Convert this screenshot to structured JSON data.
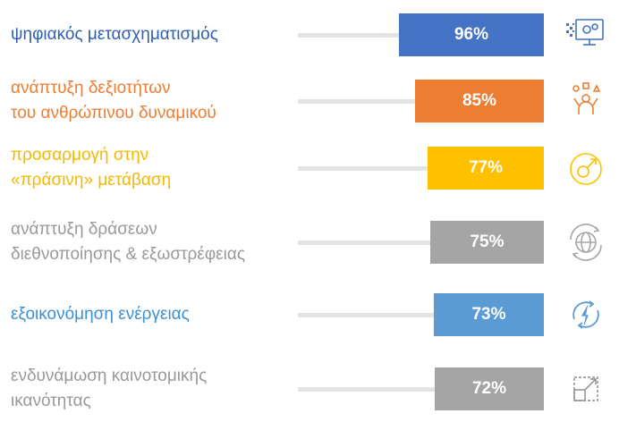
{
  "chart_data": {
    "type": "bar",
    "orientation": "horizontal",
    "categories": [
      "ψηφιακός μετασχηματισμός",
      "ανάπτυξη δεξιοτήτων\nτου ανθρώπινου δυναμικού",
      "προσαρμογή στην\n«πράσινη» μετάβαση",
      "ανάπτυξη δράσεων\nδιεθνοποίησης & εξωστρέφειας",
      "εξοικονόμηση ενέργειας",
      "ενδυνάμωση καινοτομικής\nικανότητας"
    ],
    "values": [
      96,
      85,
      77,
      75,
      73,
      72
    ],
    "value_labels": [
      "96%",
      "85%",
      "77%",
      "75%",
      "73%",
      "72%"
    ],
    "xlim": [
      0,
      100
    ],
    "colors": [
      "#4472c4",
      "#ed7d31",
      "#ffc000",
      "#a5a5a5",
      "#5b9bd5",
      "#a5a5a5"
    ],
    "label_colors": [
      "#2f5fb3",
      "#ed7d31",
      "#f5b800",
      "#999999",
      "#3d8fd4",
      "#999999"
    ],
    "icons": [
      "digital-transformation-icon",
      "people-skills-icon",
      "green-transition-icon",
      "globe-international-icon",
      "energy-saving-icon",
      "innovation-expand-icon"
    ]
  }
}
